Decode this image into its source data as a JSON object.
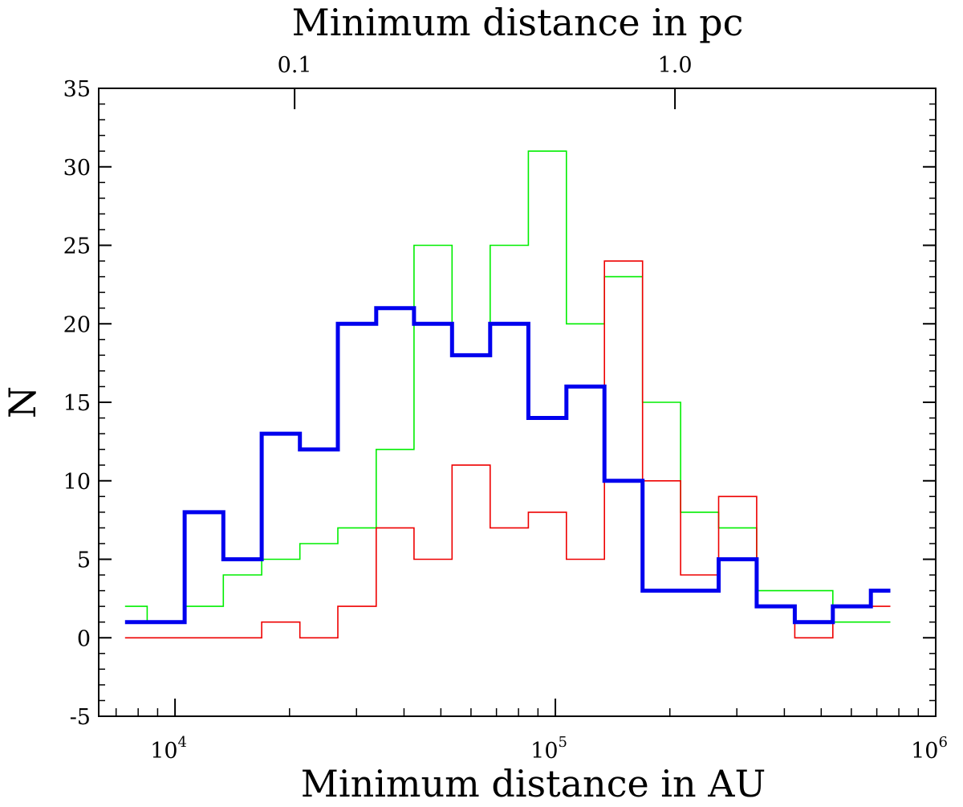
{
  "chart_data": {
    "type": "step-histogram",
    "title": "",
    "xlabel": "Minimum distance in AU",
    "ylabel": "N",
    "x2label": "Minimum distance in pc",
    "xscale": "log",
    "xlim": [
      6300,
      1000000
    ],
    "ylim": [
      -5,
      35
    ],
    "y_ticks": [
      -5,
      0,
      5,
      10,
      15,
      20,
      25,
      30,
      35
    ],
    "x_ticks": [
      {
        "value": 10000,
        "base": "10",
        "exp": "4"
      },
      {
        "value": 100000,
        "base": "10",
        "exp": "5"
      },
      {
        "value": 1000000,
        "base": "10",
        "exp": "6"
      }
    ],
    "top_ticks": [
      {
        "value_au": 20626,
        "label": "0.1"
      },
      {
        "value_au": 206265,
        "label": "1.0"
      }
    ],
    "bin_edges": [
      7390,
      8450,
      10600,
      13400,
      16900,
      21300,
      26800,
      33800,
      42500,
      53500,
      67400,
      84900,
      106900,
      134600,
      169500,
      213400,
      268700,
      338300,
      426000,
      536300,
      675300,
      760000
    ],
    "series": [
      {
        "name": "green",
        "color": "#00ee00",
        "width": 1.6,
        "values": [
          2,
          1,
          2,
          4,
          5,
          6,
          7,
          12,
          25,
          18,
          25,
          31,
          20,
          23,
          15,
          8,
          7,
          3,
          3,
          1,
          1
        ]
      },
      {
        "name": "red",
        "color": "#ee0000",
        "width": 1.6,
        "values": [
          0,
          0,
          0,
          0,
          1,
          0,
          2,
          7,
          5,
          11,
          7,
          8,
          5,
          24,
          10,
          4,
          9,
          2,
          0,
          2,
          2
        ]
      },
      {
        "name": "blue",
        "color": "#0000ee",
        "width": 5,
        "values": [
          1,
          1,
          8,
          5,
          13,
          12,
          20,
          21,
          20,
          18,
          20,
          14,
          16,
          10,
          3,
          3,
          5,
          2,
          1,
          2,
          3
        ]
      }
    ]
  }
}
